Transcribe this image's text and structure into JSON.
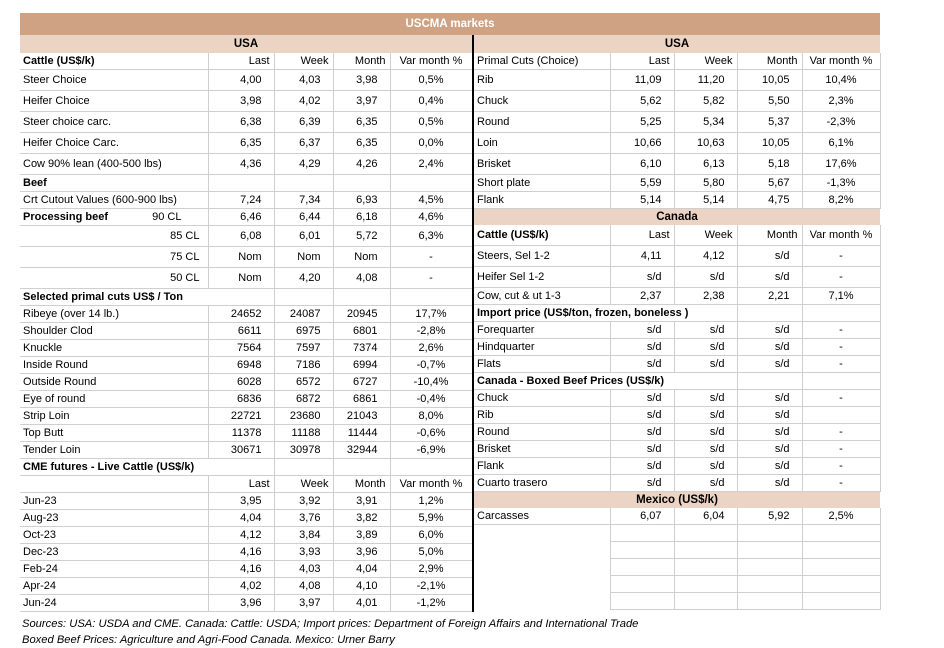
{
  "title": "USCMA markets",
  "colors": {
    "title_bg": "#cfa283",
    "band_bg": "#ecd4c4",
    "border": "#cfcfcf",
    "divider": "#000000",
    "title_text": "#ffffff"
  },
  "left": {
    "region": "USA",
    "rows": [
      {
        "t": "h",
        "bold": true,
        "label": "Cattle (US$/k)",
        "cols": [
          "Last",
          "Week",
          "Month",
          "Var month %"
        ]
      },
      {
        "t": "d",
        "tall": true,
        "label": "Steer Choice",
        "v": [
          "4,00",
          "4,03",
          "3,98",
          "0,5%"
        ]
      },
      {
        "t": "d",
        "tall": true,
        "label": "Heifer Choice",
        "v": [
          "3,98",
          "4,02",
          "3,97",
          "0,4%"
        ]
      },
      {
        "t": "d",
        "tall": true,
        "label": "Steer choice carc.",
        "v": [
          "6,38",
          "6,39",
          "6,35",
          "0,5%"
        ]
      },
      {
        "t": "d",
        "tall": true,
        "label": "Heifer Choice Carc.",
        "v": [
          "6,35",
          "6,37",
          "6,35",
          "0,0%"
        ]
      },
      {
        "t": "d",
        "tall": true,
        "label": "Cow 90% lean (400-500 lbs)",
        "v": [
          "4,36",
          "4,29",
          "4,26",
          "2,4%"
        ]
      },
      {
        "t": "s",
        "span": 1,
        "label": "Beef"
      },
      {
        "t": "d",
        "label": "Crt Cutout Values (600-900 lbs)",
        "v": [
          "7,24",
          "7,34",
          "6,93",
          "4,5%"
        ]
      },
      {
        "t": "s2",
        "label": "Processing beef",
        "sub": "90 CL",
        "v": [
          "6,46",
          "6,44",
          "6,18",
          "4,6%"
        ]
      },
      {
        "t": "d",
        "ra": true,
        "tall": true,
        "label": "85 CL",
        "v": [
          "6,08",
          "6,01",
          "5,72",
          "6,3%"
        ]
      },
      {
        "t": "d",
        "ra": true,
        "tall": true,
        "label": "75 CL",
        "v": [
          "Nom",
          "Nom",
          "Nom",
          "-"
        ]
      },
      {
        "t": "d",
        "ra": true,
        "tall": true,
        "label": "50 CL",
        "v": [
          "Nom",
          "4,20",
          "4,08",
          "-"
        ]
      },
      {
        "t": "s",
        "span": 2,
        "label": "Selected primal cuts US$ / Ton"
      },
      {
        "t": "d",
        "label": "Ribeye (over 14 lb.)",
        "v": [
          "24652",
          "24087",
          "20945",
          "17,7%"
        ]
      },
      {
        "t": "d",
        "label": "Shoulder Clod",
        "v": [
          "6611",
          "6975",
          "6801",
          "-2,8%"
        ]
      },
      {
        "t": "d",
        "label": "Knuckle",
        "v": [
          "7564",
          "7597",
          "7374",
          "2,6%"
        ]
      },
      {
        "t": "d",
        "label": "Inside Round",
        "v": [
          "6948",
          "7186",
          "6994",
          "-0,7%"
        ]
      },
      {
        "t": "d",
        "label": "Outside Round",
        "v": [
          "6028",
          "6572",
          "6727",
          "-10,4%"
        ]
      },
      {
        "t": "d",
        "label": "Eye of round",
        "v": [
          "6836",
          "6872",
          "6861",
          "-0,4%"
        ]
      },
      {
        "t": "d",
        "label": "Strip Loin",
        "v": [
          "22721",
          "23680",
          "21043",
          "8,0%"
        ]
      },
      {
        "t": "d",
        "label": "Top Butt",
        "v": [
          "11378",
          "11188",
          "11444",
          "-0,6%"
        ]
      },
      {
        "t": "d",
        "label": "Tender Loin",
        "v": [
          "30671",
          "30978",
          "32944",
          "-6,9%"
        ]
      },
      {
        "t": "s",
        "span": 2,
        "label": "CME futures - Live Cattle (US$/k)"
      },
      {
        "t": "h",
        "bold": false,
        "label": "",
        "cols": [
          "Last",
          "Week",
          "Month",
          "Var month %"
        ]
      },
      {
        "t": "d",
        "label": "Jun-23",
        "v": [
          "3,95",
          "3,92",
          "3,91",
          "1,2%"
        ]
      },
      {
        "t": "d",
        "label": "Aug-23",
        "v": [
          "4,04",
          "3,76",
          "3,82",
          "5,9%"
        ]
      },
      {
        "t": "d",
        "label": "Oct-23",
        "v": [
          "4,12",
          "3,84",
          "3,89",
          "6,0%"
        ]
      },
      {
        "t": "d",
        "label": "Dec-23",
        "v": [
          "4,16",
          "3,93",
          "3,96",
          "5,0%"
        ]
      },
      {
        "t": "d",
        "label": "Feb-24",
        "v": [
          "4,16",
          "4,03",
          "4,04",
          "2,9%"
        ]
      },
      {
        "t": "d",
        "label": "Apr-24",
        "v": [
          "4,02",
          "4,08",
          "4,10",
          "-2,1%"
        ]
      },
      {
        "t": "d",
        "label": "Jun-24",
        "v": [
          "3,96",
          "3,97",
          "4,01",
          "-1,2%"
        ]
      }
    ]
  },
  "right": {
    "region": "USA",
    "rows": [
      {
        "t": "h",
        "bold": false,
        "label": "Primal Cuts (Choice)",
        "cols": [
          "Last",
          "Week",
          "Month",
          "Var month %"
        ]
      },
      {
        "t": "d",
        "tall": true,
        "label": "Rib",
        "v": [
          "11,09",
          "11,20",
          "10,05",
          "10,4%"
        ]
      },
      {
        "t": "d",
        "tall": true,
        "label": "Chuck",
        "v": [
          "5,62",
          "5,82",
          "5,50",
          "2,3%"
        ]
      },
      {
        "t": "d",
        "tall": true,
        "label": "Round",
        "v": [
          "5,25",
          "5,34",
          "5,37",
          "-2,3%"
        ]
      },
      {
        "t": "d",
        "tall": true,
        "label": "Loin",
        "v": [
          "10,66",
          "10,63",
          "10,05",
          "6,1%"
        ]
      },
      {
        "t": "d",
        "tall": true,
        "label": "Brisket",
        "v": [
          "6,10",
          "6,13",
          "5,18",
          "17,6%"
        ]
      },
      {
        "t": "d",
        "label": "Short plate",
        "v": [
          "5,59",
          "5,80",
          "5,67",
          "-1,3%"
        ]
      },
      {
        "t": "d",
        "label": "Flank",
        "v": [
          "5,14",
          "5,14",
          "4,75",
          "8,2%"
        ]
      },
      {
        "t": "band",
        "label": "Canada"
      },
      {
        "t": "h",
        "bold": true,
        "tall": true,
        "label": "Cattle (US$/k)",
        "cols": [
          "Last",
          "Week",
          "Month",
          "Var month %"
        ]
      },
      {
        "t": "d",
        "tall": true,
        "label": "Steers, Sel 1-2",
        "v": [
          "4,11",
          "4,12",
          "s/d",
          "-"
        ]
      },
      {
        "t": "d",
        "tall": true,
        "label": "Heifer Sel 1-2",
        "v": [
          "s/d",
          "s/d",
          "s/d",
          "-"
        ]
      },
      {
        "t": "d",
        "label": "Cow, cut & ut 1-3",
        "v": [
          "2,37",
          "2,38",
          "2,21",
          "7,1%"
        ]
      },
      {
        "t": "s",
        "span": 3,
        "label": "Import price (US$/ton, frozen, boneless )"
      },
      {
        "t": "d",
        "label": "Forequarter",
        "v": [
          "s/d",
          "s/d",
          "s/d",
          "-"
        ]
      },
      {
        "t": "d",
        "label": "Hindquarter",
        "v": [
          "s/d",
          "s/d",
          "s/d",
          "-"
        ]
      },
      {
        "t": "d",
        "label": "Flats",
        "v": [
          "s/d",
          "s/d",
          "s/d",
          "-"
        ]
      },
      {
        "t": "s",
        "span": 3,
        "label": "Canada - Boxed Beef Prices (US$/k)"
      },
      {
        "t": "d",
        "label": "Chuck",
        "v": [
          "s/d",
          "s/d",
          "s/d",
          "-"
        ]
      },
      {
        "t": "d",
        "label": "Rib",
        "v": [
          "s/d",
          "s/d",
          "s/d",
          ""
        ]
      },
      {
        "t": "d",
        "label": "Round",
        "v": [
          "s/d",
          "s/d",
          "s/d",
          "-"
        ]
      },
      {
        "t": "d",
        "label": "Brisket",
        "v": [
          "s/d",
          "s/d",
          "s/d",
          "-"
        ]
      },
      {
        "t": "d",
        "label": "Flank",
        "v": [
          "s/d",
          "s/d",
          "s/d",
          "-"
        ]
      },
      {
        "t": "d",
        "label": "Cuarto trasero",
        "v": [
          "s/d",
          "s/d",
          "s/d",
          "-"
        ]
      },
      {
        "t": "band",
        "label": "Mexico (US$/k)"
      },
      {
        "t": "d",
        "label": "Carcasses",
        "v": [
          "6,07",
          "6,04",
          "5,92",
          "2,5%"
        ]
      },
      {
        "t": "e"
      },
      {
        "t": "e"
      },
      {
        "t": "e"
      },
      {
        "t": "e"
      },
      {
        "t": "e"
      }
    ]
  },
  "footer": {
    "line1": "Sources: USA: USDA and CME. Canada: Cattle: USDA; Import prices: Department of Foreign Affairs and International Trade",
    "line2": "Boxed Beef Prices: Agriculture and Agri-Food Canada. Mexico: Urner Barry"
  }
}
